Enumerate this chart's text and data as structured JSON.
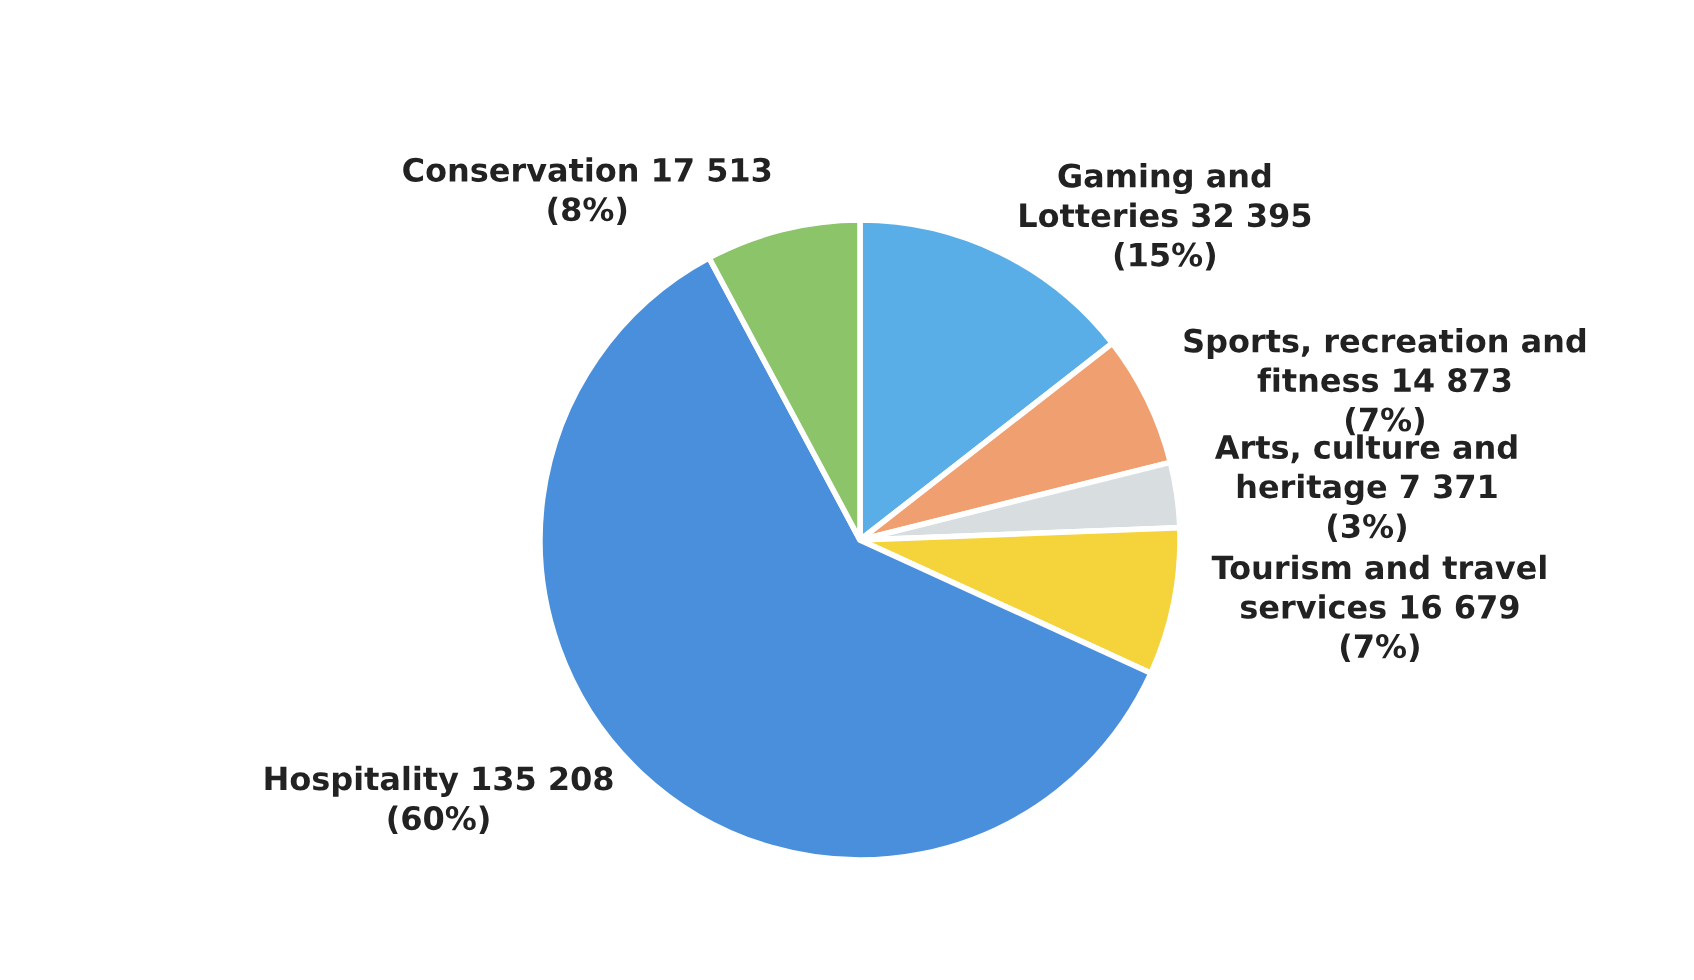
{
  "chart_data": {
    "type": "pie",
    "categories": [
      "Gaming and\nLotteries",
      "Sports, recreation and\nfitness",
      "Arts, culture and\nheritage",
      "Tourism and travel\nservices",
      "Hospitality",
      "Conservation"
    ],
    "values": [
      32395,
      14873,
      7371,
      16679,
      135208,
      17513
    ],
    "value_labels": [
      "32 395\n(15%)",
      "14 873\n(7%)",
      "7 371\n(3%)",
      "16 679\n(7%)",
      "135 208\n(60%)",
      "17 513\n(8%)"
    ],
    "colors": [
      "#5aaee8",
      "#f0a070",
      "#d8dde0",
      "#f5d33a",
      "#4a8fdc",
      "#8cc46a"
    ]
  }
}
